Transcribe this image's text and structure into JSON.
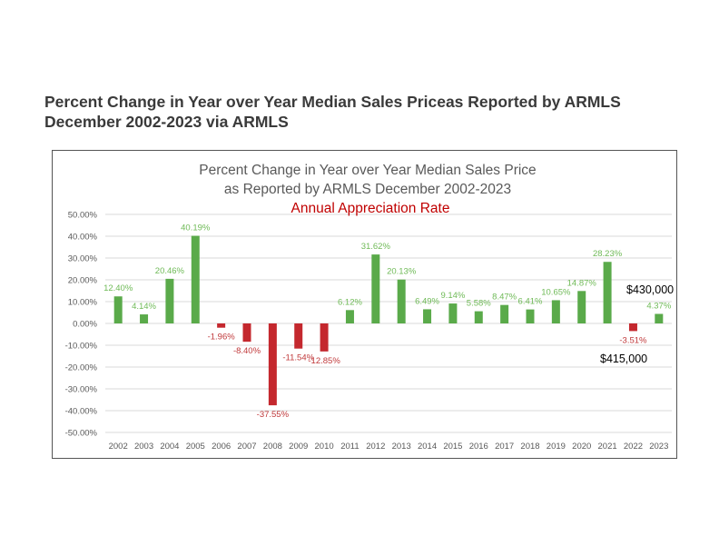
{
  "page": {
    "heading_line1": "Percent Change in Year over Year Median Sales Priceas Reported by ARMLS",
    "heading_line2": "December 2002-2023 via ARMLS"
  },
  "chart_data": {
    "type": "bar",
    "title": "Percent Change in Year over Year Median Sales Price",
    "subtitle": "as Reported by ARMLS December 2002-2023",
    "annotation": "Annual Appreciation Rate",
    "categories": [
      "2002",
      "2003",
      "2004",
      "2005",
      "2006",
      "2007",
      "2008",
      "2009",
      "2010",
      "2011",
      "2012",
      "2013",
      "2014",
      "2015",
      "2016",
      "2017",
      "2018",
      "2019",
      "2020",
      "2021",
      "2022",
      "2023"
    ],
    "values": [
      12.4,
      4.14,
      20.46,
      40.19,
      -1.96,
      -8.4,
      -37.55,
      -11.54,
      -12.85,
      6.12,
      31.62,
      20.13,
      6.49,
      9.14,
      5.58,
      8.47,
      6.41,
      10.65,
      14.87,
      28.23,
      -3.51,
      4.37
    ],
    "value_labels": [
      "12.40%",
      "4.14%",
      "20.46%",
      "40.19%",
      "-1.96%",
      "-8.40%",
      "-37.55%",
      "-11.54%",
      "-12.85%",
      "6.12%",
      "31.62%",
      "20.13%",
      "6.49%",
      "9.14%",
      "5.58%",
      "8.47%",
      "6.41%",
      "10.65%",
      "14.87%",
      "28.23%",
      "-3.51%",
      "4.37%"
    ],
    "ylim": [
      -50,
      50
    ],
    "yticks": [
      50,
      40,
      30,
      20,
      10,
      0,
      -10,
      -20,
      -30,
      -40,
      -50
    ],
    "ytick_labels": [
      "50.00%",
      "40.00%",
      "30.00%",
      "20.00%",
      "10.00%",
      "0.00%",
      "-10.00%",
      "-20.00%",
      "-30.00%",
      "-40.00%",
      "-50.00%"
    ],
    "grid": true,
    "colors": {
      "positive": "#5aaa4a",
      "negative": "#c4282e",
      "positive_label": "#6fba57",
      "negative_label": "#c0393b",
      "annotation": "#c00000",
      "title": "#595959",
      "axis_text": "#595959",
      "grid": "#d9d9d9"
    },
    "price_annotations": [
      {
        "text": "$430,000",
        "category": "2023"
      },
      {
        "text": "$415,000",
        "category": "2022"
      }
    ]
  }
}
